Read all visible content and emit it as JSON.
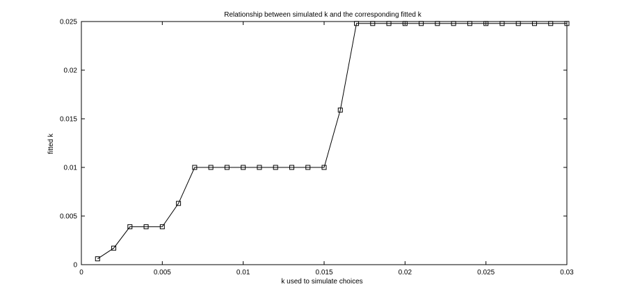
{
  "chart_data": {
    "type": "line",
    "title": "Relationship between simulated k and the corresponding fitted k",
    "xlabel": "k used to simulate choices",
    "ylabel": "fitted k",
    "xlim": [
      0,
      0.03
    ],
    "ylim": [
      0,
      0.025
    ],
    "x_ticks": [
      0,
      0.005,
      0.01,
      0.015,
      0.02,
      0.025,
      0.03
    ],
    "x_tick_labels": [
      "0",
      "0.005",
      "0.01",
      "0.015",
      "0.02",
      "0.025",
      "0.03"
    ],
    "y_ticks": [
      0,
      0.005,
      0.01,
      0.015,
      0.02,
      0.025
    ],
    "y_tick_labels": [
      "0",
      "0.005",
      "0.01",
      "0.015",
      "0.02",
      "0.025"
    ],
    "grid": false,
    "legend": "none",
    "marker": "square",
    "line_color": "#000000",
    "x": [
      0.001,
      0.002,
      0.003,
      0.004,
      0.005,
      0.006,
      0.007,
      0.008,
      0.009,
      0.01,
      0.011,
      0.012,
      0.013,
      0.014,
      0.015,
      0.016,
      0.017,
      0.018,
      0.019,
      0.02,
      0.021,
      0.022,
      0.023,
      0.024,
      0.025,
      0.026,
      0.027,
      0.028,
      0.029,
      0.03
    ],
    "values": [
      0.0006,
      0.0017,
      0.0039,
      0.0039,
      0.0039,
      0.0063,
      0.01,
      0.01,
      0.01,
      0.01,
      0.01,
      0.01,
      0.01,
      0.01,
      0.01,
      0.0159,
      0.0248,
      0.0248,
      0.0248,
      0.0248,
      0.0248,
      0.0248,
      0.0248,
      0.0248,
      0.0248,
      0.0248,
      0.0248,
      0.0248,
      0.0248,
      0.0248
    ]
  }
}
